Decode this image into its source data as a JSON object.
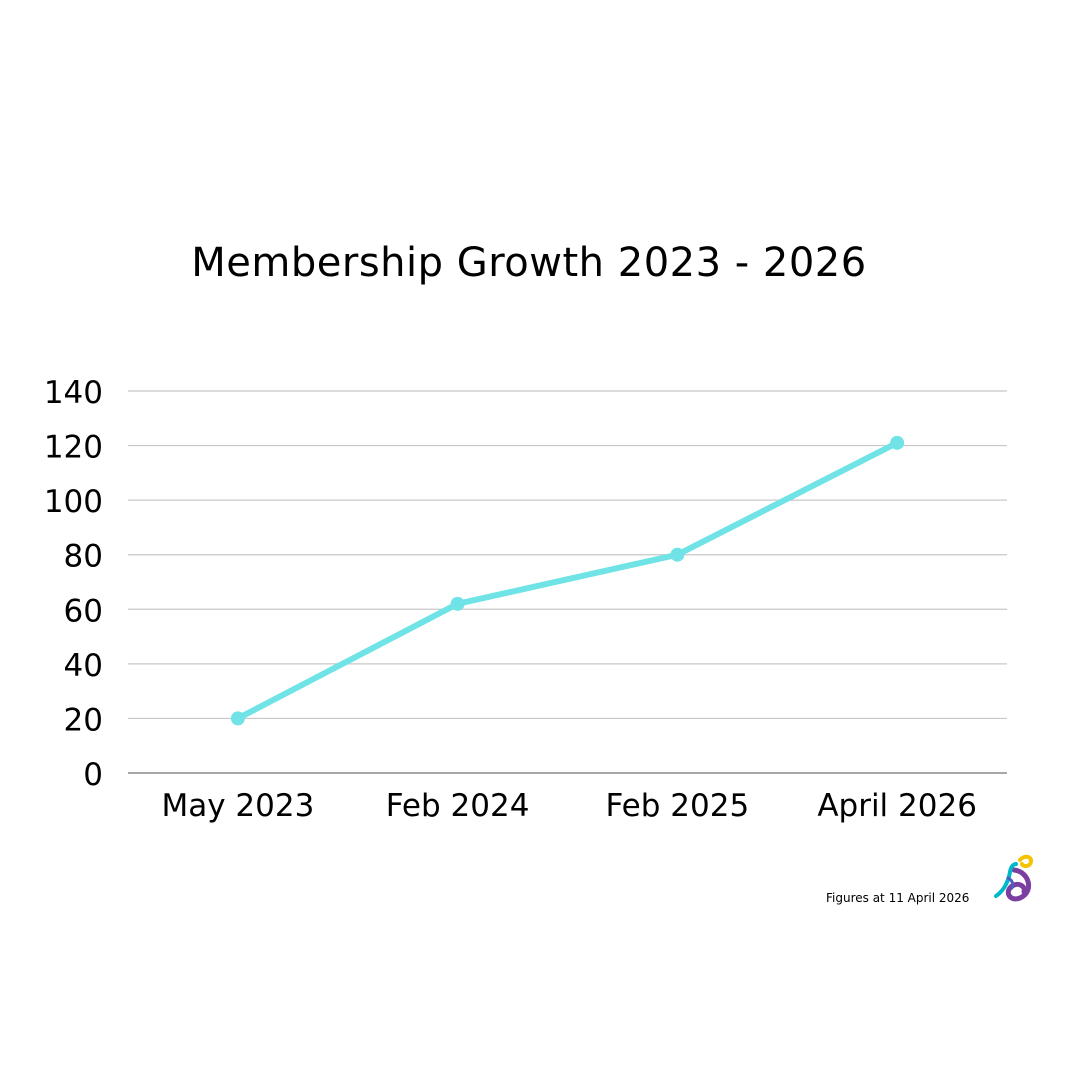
{
  "chart_data": {
    "type": "line",
    "title": "Membership Growth 2023 - 2026",
    "categories": [
      "May 2023",
      "Feb 2024",
      "Feb 2025",
      "April 2026"
    ],
    "values": [
      20,
      62,
      80,
      121
    ],
    "ylim": [
      0,
      140
    ],
    "yticks": [
      0,
      20,
      40,
      60,
      80,
      100,
      120,
      140
    ],
    "grid": true,
    "legend": "none",
    "colors": {
      "line": "#6fe3e5",
      "grid": "#c8c8c8",
      "axis": "#8a8a8a"
    }
  },
  "footnote": "Figures at 11 April 2026",
  "logo": {
    "icon": "organisation-logo-icon",
    "colors": [
      "#00b8c7",
      "#7a3fa0",
      "#f5c400",
      "#4a5fc1"
    ]
  }
}
